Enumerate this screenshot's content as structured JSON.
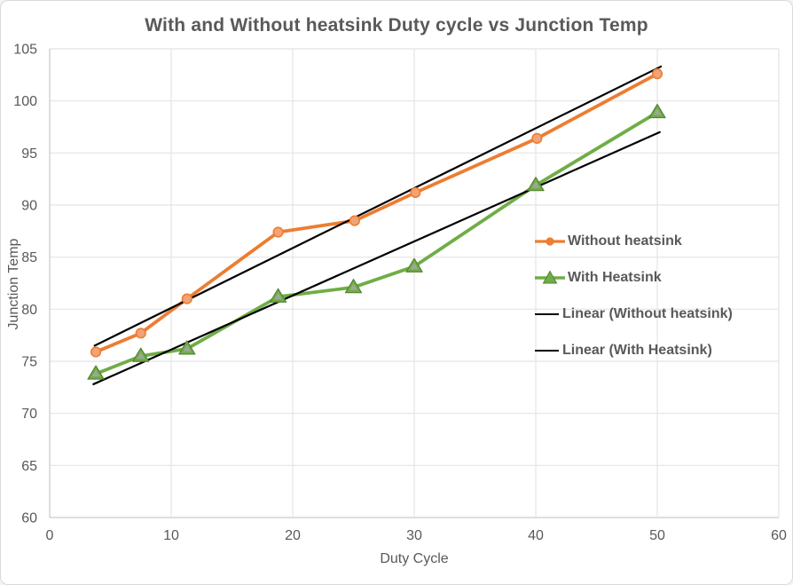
{
  "colors": {
    "background": "#FFFFFF",
    "canvas_border": "#D9D9D9",
    "text": "#595959",
    "grid": "#E4E4E4",
    "axis": "#C9C9C9",
    "orange": "#ED7D31",
    "orange_marker_fill": "#F2A377",
    "green": "#70AD47",
    "green_dark": "#548235",
    "marker_inner_gray": "#A6A6A6",
    "trendline": "#000000"
  },
  "chart_data": {
    "type": "line",
    "title": "With and Without heatsink Duty cycle vs Junction Temp",
    "xlabel": "Duty Cycle",
    "ylabel": "Junction Temp",
    "xlim": [
      0,
      60
    ],
    "ylim": [
      60,
      105
    ],
    "x_ticks": [
      0,
      10,
      20,
      30,
      40,
      50,
      60
    ],
    "y_ticks": [
      60,
      65,
      70,
      75,
      80,
      85,
      90,
      95,
      100,
      105
    ],
    "grid": true,
    "legend_position": "inside-right",
    "series": [
      {
        "name": "Without heatsink",
        "kind": "data",
        "marker": "circle",
        "color": "#ED7D31",
        "x": [
          3.8,
          7.5,
          11.3,
          18.8,
          25.1,
          30.1,
          40.1,
          50
        ],
        "y": [
          75.9,
          77.7,
          81.0,
          87.4,
          88.5,
          91.2,
          96.4,
          102.6
        ]
      },
      {
        "name": "With Heatsink",
        "kind": "data",
        "marker": "triangle",
        "color": "#70AD47",
        "x": [
          3.8,
          7.5,
          11.3,
          18.8,
          25.0,
          30.0,
          40.0,
          50
        ],
        "y": [
          73.8,
          75.5,
          76.2,
          81.2,
          82.1,
          84.1,
          91.9,
          98.9
        ]
      },
      {
        "name": "Linear (Without heatsink)",
        "kind": "trendline",
        "marker": "none",
        "color": "#000000",
        "x": [
          3.7,
          50.3
        ],
        "y": [
          76.5,
          103.3
        ]
      },
      {
        "name": "Linear (With Heatsink)",
        "kind": "trendline",
        "marker": "none",
        "color": "#000000",
        "x": [
          3.6,
          50.2
        ],
        "y": [
          72.8,
          97.0
        ]
      }
    ]
  }
}
